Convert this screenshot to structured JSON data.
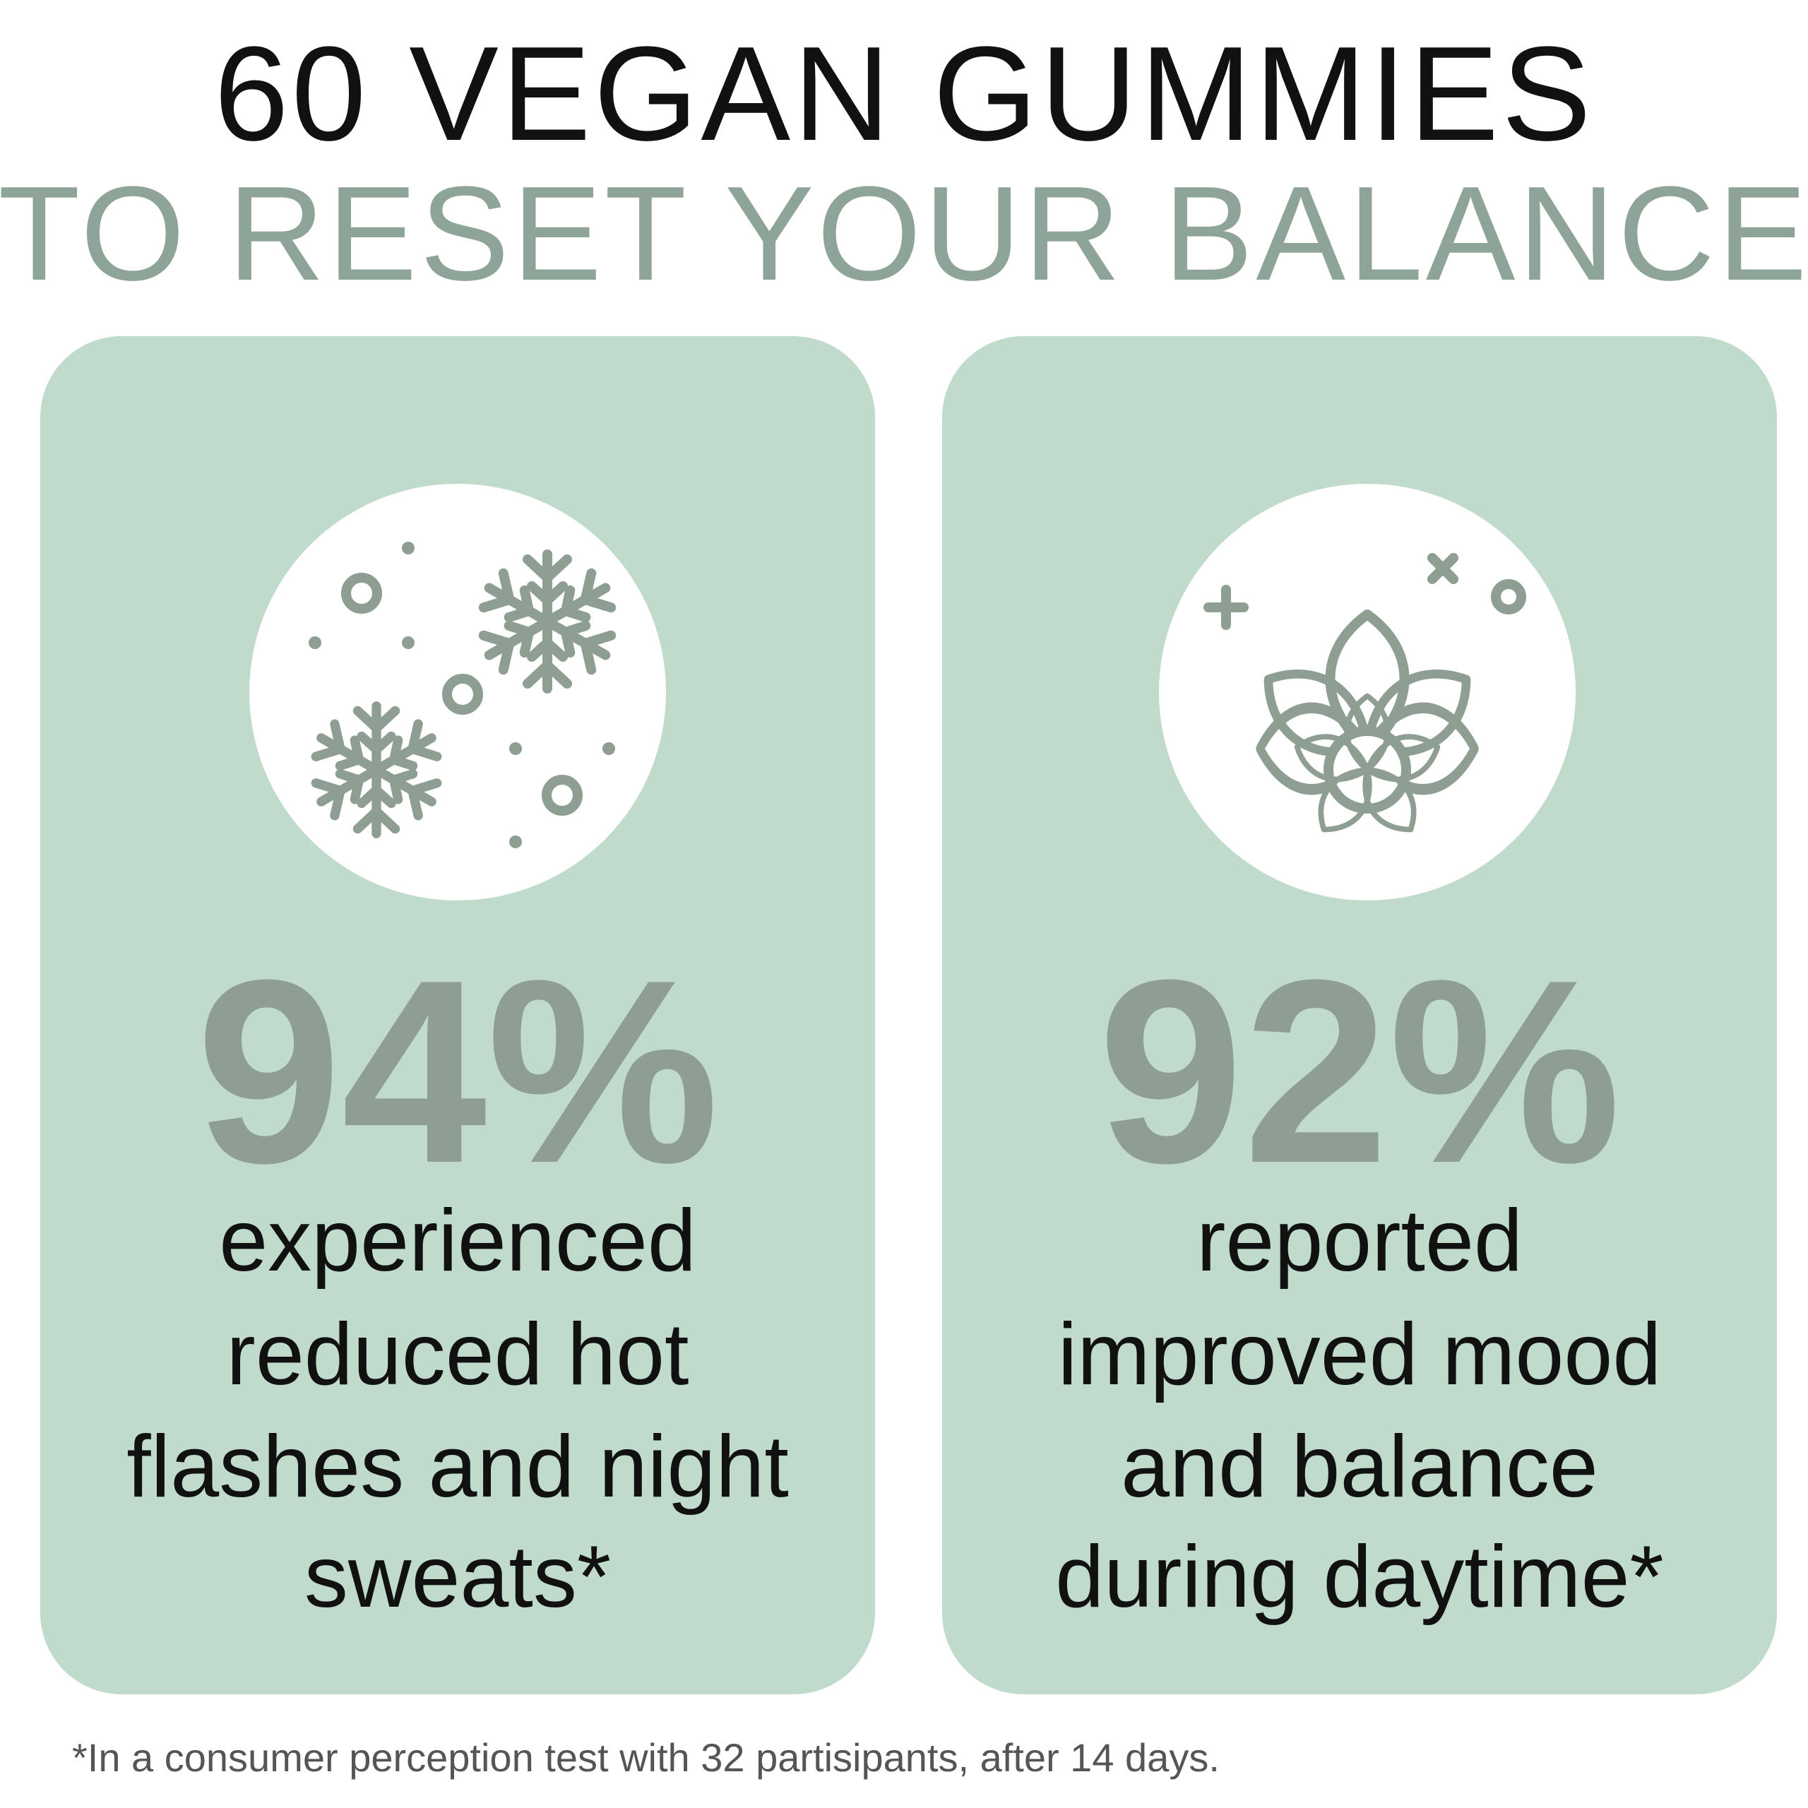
{
  "header": {
    "line1": "60 VEGAN GUMMIES",
    "line2": "TO RESET YOUR BALANCE"
  },
  "cards": [
    {
      "stat": "94%",
      "lines": [
        "experienced",
        "reduced hot",
        "flashes and night",
        "sweats*"
      ]
    },
    {
      "stat": "92%",
      "lines": [
        "reported",
        "improved mood",
        "and balance",
        "during daytime*"
      ]
    }
  ],
  "footnote": "*In a consumer perception test with 32 partisipants, after 14 days."
}
